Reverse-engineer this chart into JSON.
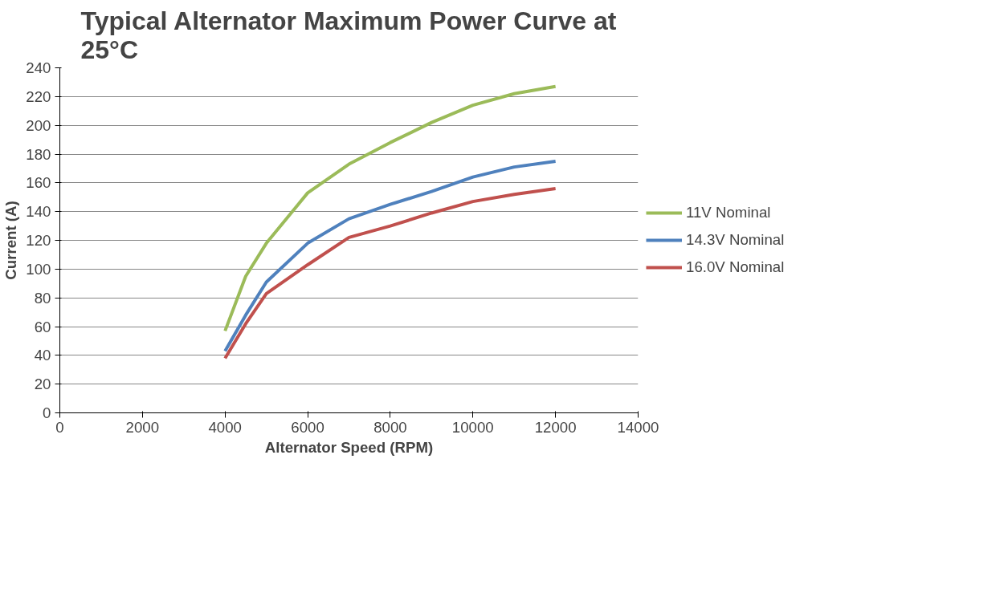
{
  "chart_data": {
    "type": "line",
    "title": "Typical Alternator Maximum Power Curve at 25°C",
    "xlabel": "Alternator Speed (RPM)",
    "ylabel": "Current (A)",
    "x": [
      4000,
      4500,
      5000,
      6000,
      7000,
      8000,
      9000,
      10000,
      11000,
      12000
    ],
    "series": [
      {
        "name": "11V Nominal",
        "color": "#9bbb59",
        "values": [
          57,
          95,
          118,
          153,
          173,
          188,
          202,
          214,
          222,
          227
        ]
      },
      {
        "name": "14.3V Nominal",
        "color": "#4f81bd",
        "values": [
          43,
          68,
          91,
          118,
          135,
          145,
          154,
          164,
          171,
          175
        ]
      },
      {
        "name": "16.0V Nominal",
        "color": "#c0504d",
        "values": [
          38,
          62,
          83,
          103,
          122,
          130,
          139,
          147,
          152,
          156
        ]
      }
    ],
    "xlim": [
      0,
      14000
    ],
    "xticks": [
      0,
      2000,
      4000,
      6000,
      8000,
      10000,
      12000,
      14000
    ],
    "ylim": [
      0,
      240
    ],
    "yticks": [
      0,
      20,
      40,
      60,
      80,
      100,
      120,
      140,
      160,
      180,
      200,
      220,
      240
    ],
    "grid": "y",
    "legend": "right",
    "marker": "none",
    "line_style": "solid"
  }
}
